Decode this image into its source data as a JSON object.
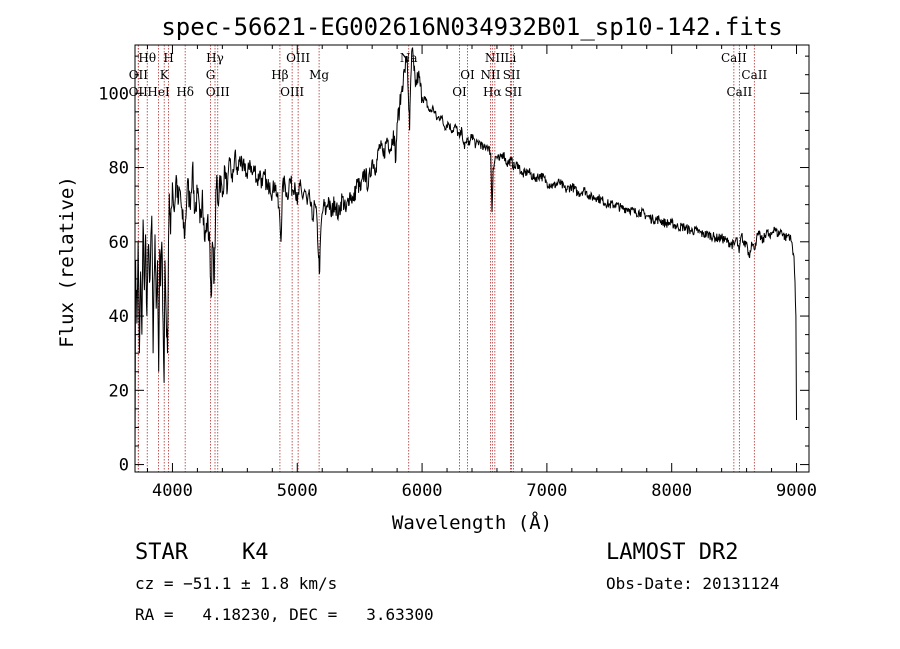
{
  "chart_data": {
    "type": "line",
    "title": "spec-56621-EG002616N034932B01_sp10-142.fits",
    "xlabel": "Wavelength (Å)",
    "ylabel": "Flux (relative)",
    "xlim": [
      3700,
      9100
    ],
    "ylim": [
      -2,
      113
    ],
    "xticks": [
      4000,
      5000,
      6000,
      7000,
      8000,
      9000
    ],
    "yticks": [
      0,
      20,
      40,
      60,
      80,
      100
    ],
    "grid": false,
    "spectrum": [
      [
        3700,
        0
      ],
      [
        3705,
        55
      ],
      [
        3715,
        38
      ],
      [
        3725,
        60
      ],
      [
        3735,
        30
      ],
      [
        3745,
        52
      ],
      [
        3755,
        35
      ],
      [
        3765,
        66
      ],
      [
        3775,
        47
      ],
      [
        3785,
        62
      ],
      [
        3795,
        40
      ],
      [
        3805,
        58
      ],
      [
        3820,
        50
      ],
      [
        3835,
        67
      ],
      [
        3845,
        30
      ],
      [
        3860,
        62
      ],
      [
        3870,
        42
      ],
      [
        3880,
        55
      ],
      [
        3890,
        25
      ],
      [
        3898,
        58
      ],
      [
        3905,
        48
      ],
      [
        3915,
        60
      ],
      [
        3925,
        38
      ],
      [
        3933,
        22
      ],
      [
        3940,
        55
      ],
      [
        3950,
        40
      ],
      [
        3960,
        30
      ],
      [
        3968,
        60
      ],
      [
        3975,
        73
      ],
      [
        3985,
        62
      ],
      [
        4000,
        76
      ],
      [
        4015,
        68
      ],
      [
        4030,
        78
      ],
      [
        4045,
        70
      ],
      [
        4060,
        74
      ],
      [
        4080,
        66
      ],
      [
        4100,
        62
      ],
      [
        4120,
        76
      ],
      [
        4140,
        70
      ],
      [
        4160,
        80
      ],
      [
        4180,
        68
      ],
      [
        4200,
        73
      ],
      [
        4220,
        65
      ],
      [
        4240,
        74
      ],
      [
        4260,
        60
      ],
      [
        4280,
        66
      ],
      [
        4300,
        58
      ],
      [
        4310,
        45
      ],
      [
        4320,
        60
      ],
      [
        4335,
        50
      ],
      [
        4345,
        66
      ],
      [
        4355,
        78
      ],
      [
        4365,
        70
      ],
      [
        4380,
        78
      ],
      [
        4400,
        72
      ],
      [
        4420,
        80
      ],
      [
        4440,
        74
      ],
      [
        4460,
        82
      ],
      [
        4480,
        76
      ],
      [
        4500,
        84
      ],
      [
        4520,
        78
      ],
      [
        4540,
        83
      ],
      [
        4560,
        79
      ],
      [
        4580,
        81
      ],
      [
        4600,
        77
      ],
      [
        4620,
        82
      ],
      [
        4640,
        78
      ],
      [
        4660,
        80
      ],
      [
        4680,
        76
      ],
      [
        4700,
        79
      ],
      [
        4720,
        75
      ],
      [
        4740,
        78
      ],
      [
        4760,
        74
      ],
      [
        4780,
        76
      ],
      [
        4800,
        73
      ],
      [
        4820,
        76
      ],
      [
        4840,
        72
      ],
      [
        4860,
        66
      ],
      [
        4870,
        60
      ],
      [
        4880,
        74
      ],
      [
        4900,
        76
      ],
      [
        4920,
        72
      ],
      [
        4940,
        77
      ],
      [
        4960,
        74
      ],
      [
        4980,
        76
      ],
      [
        5000,
        70
      ],
      [
        5020,
        75
      ],
      [
        5040,
        72
      ],
      [
        5060,
        74
      ],
      [
        5080,
        70
      ],
      [
        5100,
        72
      ],
      [
        5120,
        66
      ],
      [
        5140,
        70
      ],
      [
        5160,
        65
      ],
      [
        5170,
        56
      ],
      [
        5180,
        52
      ],
      [
        5190,
        64
      ],
      [
        5210,
        70
      ],
      [
        5230,
        68
      ],
      [
        5250,
        72
      ],
      [
        5270,
        67
      ],
      [
        5300,
        71
      ],
      [
        5330,
        67
      ],
      [
        5360,
        72
      ],
      [
        5390,
        68
      ],
      [
        5420,
        73
      ],
      [
        5450,
        71
      ],
      [
        5480,
        76
      ],
      [
        5510,
        74
      ],
      [
        5540,
        79
      ],
      [
        5570,
        75
      ],
      [
        5600,
        82
      ],
      [
        5630,
        80
      ],
      [
        5660,
        86
      ],
      [
        5690,
        83
      ],
      [
        5720,
        88
      ],
      [
        5750,
        85
      ],
      [
        5770,
        90
      ],
      [
        5790,
        82
      ],
      [
        5800,
        92
      ],
      [
        5820,
        96
      ],
      [
        5840,
        102
      ],
      [
        5860,
        106
      ],
      [
        5880,
        110
      ],
      [
        5890,
        100
      ],
      [
        5900,
        90
      ],
      [
        5910,
        104
      ],
      [
        5920,
        112
      ],
      [
        5935,
        106
      ],
      [
        5950,
        102
      ],
      [
        5970,
        105
      ],
      [
        6000,
        99
      ],
      [
        6030,
        98
      ],
      [
        6060,
        95
      ],
      [
        6090,
        96
      ],
      [
        6120,
        93
      ],
      [
        6150,
        94
      ],
      [
        6180,
        91
      ],
      [
        6210,
        92
      ],
      [
        6240,
        90
      ],
      [
        6270,
        91
      ],
      [
        6300,
        88
      ],
      [
        6320,
        90
      ],
      [
        6340,
        85
      ],
      [
        6360,
        88
      ],
      [
        6380,
        86
      ],
      [
        6400,
        89
      ],
      [
        6430,
        86
      ],
      [
        6460,
        87
      ],
      [
        6490,
        85
      ],
      [
        6520,
        86
      ],
      [
        6550,
        84
      ],
      [
        6560,
        68
      ],
      [
        6570,
        80
      ],
      [
        6590,
        83
      ],
      [
        6620,
        82
      ],
      [
        6650,
        84
      ],
      [
        6680,
        81
      ],
      [
        6710,
        82
      ],
      [
        6740,
        80
      ],
      [
        6770,
        81
      ],
      [
        6800,
        78
      ],
      [
        6850,
        79
      ],
      [
        6900,
        77
      ],
      [
        6950,
        78
      ],
      [
        7000,
        76
      ],
      [
        7050,
        75
      ],
      [
        7100,
        76
      ],
      [
        7150,
        74
      ],
      [
        7200,
        75
      ],
      [
        7250,
        73
      ],
      [
        7300,
        74
      ],
      [
        7350,
        72
      ],
      [
        7400,
        72
      ],
      [
        7450,
        71
      ],
      [
        7500,
        70
      ],
      [
        7550,
        70
      ],
      [
        7600,
        69
      ],
      [
        7650,
        69
      ],
      [
        7700,
        68
      ],
      [
        7750,
        68
      ],
      [
        7800,
        67
      ],
      [
        7850,
        66
      ],
      [
        7900,
        66
      ],
      [
        7950,
        65
      ],
      [
        8000,
        65
      ],
      [
        8050,
        64
      ],
      [
        8100,
        64
      ],
      [
        8150,
        63
      ],
      [
        8200,
        63
      ],
      [
        8250,
        62
      ],
      [
        8300,
        62
      ],
      [
        8350,
        61
      ],
      [
        8400,
        61
      ],
      [
        8450,
        60
      ],
      [
        8500,
        59
      ],
      [
        8520,
        61
      ],
      [
        8540,
        57
      ],
      [
        8560,
        62
      ],
      [
        8580,
        59
      ],
      [
        8600,
        60
      ],
      [
        8620,
        56
      ],
      [
        8640,
        60
      ],
      [
        8660,
        58
      ],
      [
        8680,
        61
      ],
      [
        8700,
        62
      ],
      [
        8730,
        60
      ],
      [
        8760,
        63
      ],
      [
        8790,
        61
      ],
      [
        8820,
        64
      ],
      [
        8850,
        62
      ],
      [
        8880,
        63
      ],
      [
        8910,
        61
      ],
      [
        8940,
        62
      ],
      [
        8960,
        60
      ],
      [
        8980,
        56
      ],
      [
        8995,
        40
      ],
      [
        9000,
        12
      ]
    ],
    "spectral_lines": [
      {
        "label": "Hθ",
        "wavelength": 3798,
        "row": 0
      },
      {
        "label": "H",
        "wavelength": 3969,
        "row": 0
      },
      {
        "label": "Hγ",
        "wavelength": 4341,
        "row": 0
      },
      {
        "label": "OIII",
        "wavelength": 5007,
        "row": 0
      },
      {
        "label": "Na",
        "wavelength": 5893,
        "row": 0
      },
      {
        "label": "NII",
        "wavelength": 6583,
        "row": 0
      },
      {
        "label": "Li",
        "wavelength": 6708,
        "row": 0
      },
      {
        "label": "CaII",
        "wavelength": 8498,
        "row": 0
      },
      {
        "label": "OII",
        "wavelength": 3727,
        "row": 1
      },
      {
        "label": "K",
        "wavelength": 3934,
        "row": 1
      },
      {
        "label": "G",
        "wavelength": 4305,
        "row": 1
      },
      {
        "label": "Hβ",
        "wavelength": 4861,
        "row": 1
      },
      {
        "label": "Mg",
        "wavelength": 5175,
        "row": 1
      },
      {
        "label": "OI",
        "wavelength": 6364,
        "row": 1
      },
      {
        "label": "NII",
        "wavelength": 6548,
        "row": 1
      },
      {
        "label": "SII",
        "wavelength": 6717,
        "row": 1
      },
      {
        "label": "CaII",
        "wavelength": 8662,
        "row": 1
      },
      {
        "label": "OII",
        "wavelength": 3726,
        "row": 2
      },
      {
        "label": "HeI",
        "wavelength": 3889,
        "row": 2
      },
      {
        "label": "Hδ",
        "wavelength": 4102,
        "row": 2
      },
      {
        "label": "OIII",
        "wavelength": 4363,
        "row": 2
      },
      {
        "label": "OIII",
        "wavelength": 4959,
        "row": 2
      },
      {
        "label": "OI",
        "wavelength": 6300,
        "row": 2
      },
      {
        "label": "Hα",
        "wavelength": 6563,
        "row": 2
      },
      {
        "label": "SII",
        "wavelength": 6731,
        "row": 2
      },
      {
        "label": "CaII",
        "wavelength": 8542,
        "row": 2
      }
    ],
    "line_color": "#000000",
    "marker_color": "#b03030"
  },
  "info": {
    "object_class": "STAR",
    "subclass": "K4",
    "survey": "LAMOST DR2",
    "redshift_text": "cz = −51.1 ± 1.8 km/s",
    "obs_date_text": "Obs-Date: 20131124",
    "coords_text": "RA =   4.18230, DEC =   3.63300"
  }
}
